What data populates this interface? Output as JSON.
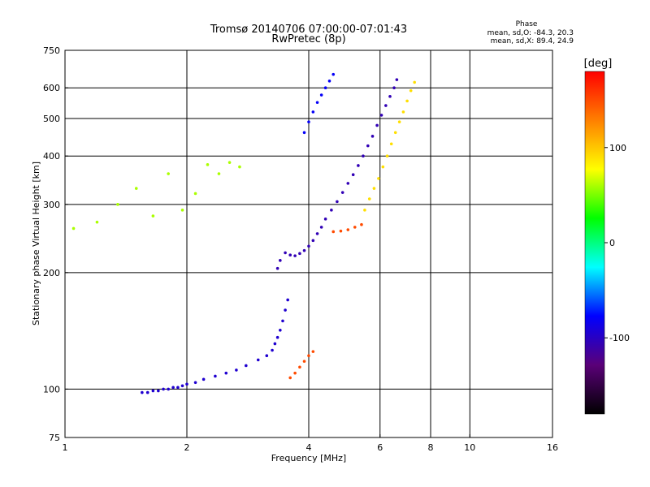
{
  "chart_data": {
    "type": "scatter",
    "title": "Tromsø 20140706 07:00:00-07:01:43",
    "subtitle": "RwPretec (8p)",
    "phase_box": {
      "heading": "Phase",
      "line_o": "mean, sd,O: -84.3, 20.3",
      "line_x": "mean, sd,X:  89.4, 24.9"
    },
    "xlabel": "Frequency [MHz]",
    "ylabel": "Stationary phase Virtual Height [km]",
    "x_scale": "log",
    "y_scale": "log",
    "xlim": [
      1,
      16
    ],
    "ylim": [
      75,
      750
    ],
    "x_ticks": [
      1,
      2,
      4,
      6,
      8,
      10,
      16
    ],
    "x_tick_labels": [
      "1",
      "2",
      "4",
      "6",
      "8",
      "10",
      "16"
    ],
    "y_ticks": [
      75,
      100,
      200,
      300,
      400,
      500,
      600,
      750
    ],
    "y_tick_labels": [
      "75",
      "100",
      "200",
      "300",
      "400",
      "500",
      "600",
      "750"
    ],
    "x_grid": [
      2,
      4,
      6,
      8,
      10
    ],
    "y_grid": [
      100,
      200,
      300,
      400,
      500,
      600
    ],
    "grid": true,
    "colorbar": {
      "label": "[deg]",
      "min": -180,
      "max": 180,
      "ticks": [
        100,
        0,
        -100
      ],
      "tick_labels": [
        "100",
        "0",
        "-100"
      ],
      "colors": [
        "#000000",
        "#5a0078",
        "#0000ff",
        "#00ffff",
        "#00ff00",
        "#ffff00",
        "#ff8000",
        "#ff0000"
      ]
    },
    "series": [
      {
        "points": [
          [
            1.55,
            98
          ],
          [
            1.6,
            98
          ],
          [
            1.65,
            99
          ],
          [
            1.7,
            99
          ],
          [
            1.75,
            100
          ],
          [
            1.8,
            100
          ],
          [
            1.85,
            101
          ],
          [
            1.9,
            101
          ],
          [
            1.95,
            102
          ],
          [
            2.0,
            103
          ],
          [
            2.1,
            104
          ],
          [
            2.2,
            106
          ],
          [
            2.35,
            108
          ],
          [
            2.5,
            110
          ],
          [
            2.65,
            112
          ],
          [
            2.8,
            115
          ],
          [
            3.0,
            119
          ],
          [
            3.15,
            122
          ],
          [
            3.25,
            126
          ],
          [
            3.3,
            131
          ],
          [
            3.35,
            136
          ],
          [
            3.4,
            142
          ],
          [
            3.45,
            150
          ],
          [
            3.5,
            160
          ],
          [
            3.55,
            170
          ]
        ],
        "phase": -95
      },
      {
        "points": [
          [
            3.35,
            205
          ],
          [
            3.4,
            215
          ],
          [
            3.5,
            225
          ],
          [
            3.6,
            222
          ],
          [
            3.7,
            221
          ],
          [
            3.8,
            224
          ],
          [
            3.9,
            228
          ],
          [
            4.0,
            234
          ],
          [
            4.1,
            242
          ],
          [
            4.2,
            252
          ],
          [
            4.3,
            262
          ],
          [
            4.4,
            275
          ],
          [
            4.55,
            290
          ],
          [
            4.7,
            305
          ],
          [
            4.85,
            322
          ],
          [
            5.0,
            340
          ],
          [
            5.15,
            358
          ],
          [
            5.3,
            378
          ],
          [
            5.45,
            400
          ],
          [
            5.6,
            425
          ],
          [
            5.75,
            450
          ],
          [
            5.9,
            480
          ],
          [
            6.05,
            510
          ],
          [
            6.2,
            540
          ],
          [
            6.35,
            570
          ],
          [
            6.5,
            600
          ],
          [
            6.6,
            630
          ]
        ],
        "phase": -105
      },
      {
        "points": [
          [
            3.9,
            460
          ],
          [
            4.0,
            490
          ],
          [
            4.1,
            520
          ],
          [
            4.2,
            550
          ],
          [
            4.3,
            575
          ],
          [
            4.4,
            600
          ],
          [
            4.5,
            625
          ],
          [
            4.6,
            650
          ]
        ],
        "phase": -80
      },
      {
        "points": [
          [
            5.5,
            290
          ],
          [
            5.65,
            310
          ],
          [
            5.8,
            330
          ],
          [
            5.95,
            350
          ],
          [
            6.1,
            375
          ],
          [
            6.25,
            400
          ],
          [
            6.4,
            430
          ],
          [
            6.55,
            460
          ],
          [
            6.7,
            490
          ],
          [
            6.85,
            520
          ],
          [
            7.0,
            555
          ],
          [
            7.15,
            590
          ],
          [
            7.3,
            620
          ]
        ],
        "phase": 90
      },
      {
        "points": [
          [
            3.6,
            107
          ],
          [
            3.7,
            110
          ],
          [
            3.8,
            114
          ],
          [
            3.9,
            118
          ],
          [
            4.0,
            122
          ],
          [
            4.1,
            125
          ]
        ],
        "phase": 150
      },
      {
        "points": [
          [
            4.6,
            255
          ],
          [
            4.8,
            256
          ],
          [
            5.0,
            258
          ],
          [
            5.2,
            262
          ],
          [
            5.4,
            266
          ]
        ],
        "phase": 150
      },
      {
        "points": [
          [
            1.05,
            260
          ],
          [
            1.2,
            270
          ],
          [
            1.35,
            300
          ],
          [
            1.5,
            330
          ],
          [
            1.65,
            280
          ],
          [
            1.8,
            360
          ],
          [
            1.95,
            290
          ],
          [
            2.1,
            320
          ],
          [
            2.25,
            380
          ],
          [
            2.4,
            360
          ],
          [
            2.55,
            385
          ],
          [
            2.7,
            375
          ]
        ],
        "phase": 60
      }
    ]
  }
}
